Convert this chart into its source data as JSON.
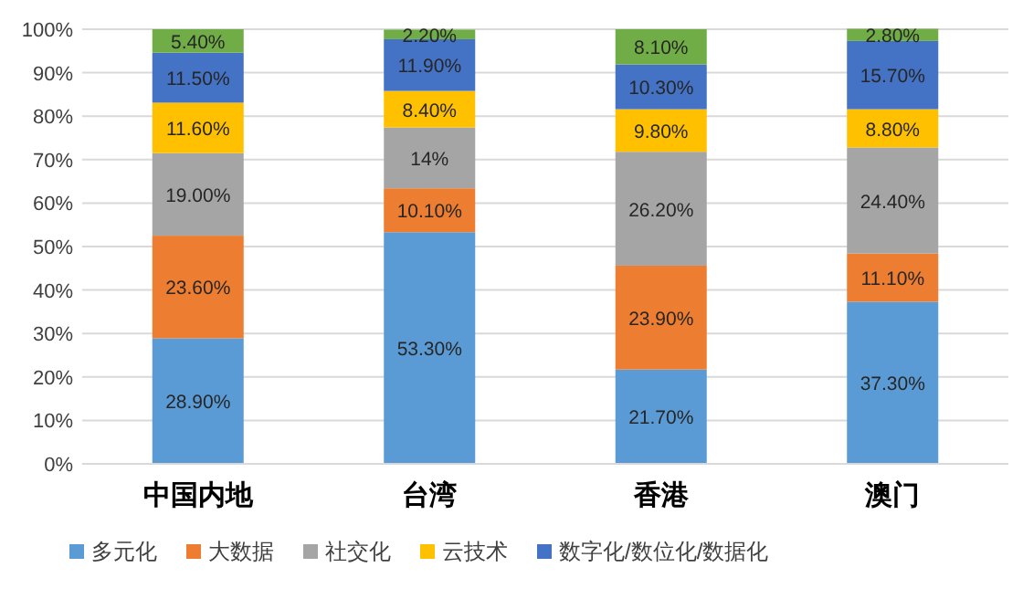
{
  "chart_data": {
    "type": "bar",
    "stacked": true,
    "categories": [
      "中国内地",
      "台湾",
      "香港",
      "澳门"
    ],
    "series": [
      {
        "name": "多元化",
        "color": "#5b9bd5",
        "values": [
          28.9,
          53.3,
          21.7,
          37.3
        ],
        "value_labels": [
          "28.90%",
          "53.30%",
          "21.70%",
          "37.30%"
        ]
      },
      {
        "name": "大数据",
        "color": "#ed7d31",
        "values": [
          23.6,
          10.1,
          23.9,
          11.1
        ],
        "value_labels": [
          "23.60%",
          "10.10%",
          "23.90%",
          "11.10%"
        ]
      },
      {
        "name": "社交化",
        "color": "#a5a5a5",
        "values": [
          19.0,
          14,
          26.2,
          24.4
        ],
        "value_labels": [
          "19.00%",
          "14%",
          "26.20%",
          "24.40%"
        ]
      },
      {
        "name": "云技术",
        "color": "#ffc000",
        "values": [
          11.6,
          8.4,
          9.8,
          8.8
        ],
        "value_labels": [
          "11.60%",
          "8.40%",
          "9.80%",
          "8.80%"
        ]
      },
      {
        "name": "数字化/数位化/数据化",
        "color": "#4472c4",
        "values": [
          11.5,
          11.9,
          10.3,
          15.7
        ],
        "value_labels": [
          "11.50%",
          "11.90%",
          "10.30%",
          "15.70%"
        ]
      },
      {
        "color": "#70ad47",
        "values": [
          5.4,
          2.2,
          8.1,
          2.8
        ],
        "value_labels": [
          "5.40%",
          "2.20%",
          "8.10%",
          "2.80%"
        ]
      }
    ],
    "ylim": [
      0,
      100
    ],
    "yticks": [
      {
        "value": 0,
        "label": "0%"
      },
      {
        "value": 10,
        "label": "10%"
      },
      {
        "value": 20,
        "label": "20%"
      },
      {
        "value": 30,
        "label": "30%"
      },
      {
        "value": 40,
        "label": "40%"
      },
      {
        "value": 50,
        "label": "50%"
      },
      {
        "value": 60,
        "label": "60%"
      },
      {
        "value": 70,
        "label": "70%"
      },
      {
        "value": 80,
        "label": "80%"
      },
      {
        "value": 90,
        "label": "90%"
      },
      {
        "value": 100,
        "label": "100%"
      }
    ],
    "grid": "y",
    "legend": "bottom"
  }
}
